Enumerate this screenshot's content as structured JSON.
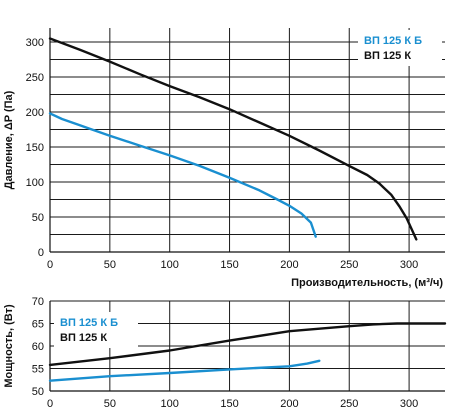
{
  "chart_data": [
    {
      "type": "line",
      "title": "",
      "xlabel": "Производительность, (м³/ч)",
      "ylabel": "Давление, ΔP (Па)",
      "xlim": [
        0,
        330
      ],
      "ylim": [
        0,
        320
      ],
      "x_ticks": [
        0,
        50,
        100,
        150,
        200,
        250,
        300
      ],
      "y_ticks": [
        0,
        25,
        50,
        75,
        100,
        125,
        150,
        175,
        200,
        225,
        250,
        275,
        300
      ],
      "y_tick_labels": [
        0,
        50,
        100,
        150,
        200,
        250,
        300
      ],
      "grid": true,
      "legend": "top-right",
      "series": [
        {
          "name": "ВП 125 К Б",
          "color": "#1a8fd0",
          "x": [
            0,
            10,
            25,
            50,
            75,
            100,
            125,
            150,
            175,
            190,
            200,
            210,
            218,
            222
          ],
          "y": [
            198,
            190,
            181,
            166,
            152,
            138,
            123,
            106,
            88,
            75,
            66,
            55,
            42,
            22
          ]
        },
        {
          "name": "ВП 125 К",
          "color": "#111111",
          "x": [
            0,
            25,
            50,
            75,
            100,
            125,
            150,
            175,
            200,
            225,
            250,
            265,
            275,
            285,
            292,
            298,
            302,
            306
          ],
          "y": [
            305,
            289,
            272,
            254,
            237,
            221,
            204,
            185,
            166,
            145,
            123,
            110,
            98,
            82,
            65,
            48,
            33,
            18
          ]
        }
      ]
    },
    {
      "type": "line",
      "title": "",
      "xlabel": "",
      "ylabel": "Мощность, (Вт)",
      "xlim": [
        0,
        330
      ],
      "ylim": [
        50,
        70
      ],
      "x_ticks": [
        0,
        50,
        100,
        150,
        200,
        250,
        300
      ],
      "y_ticks": [
        50,
        55,
        60,
        65,
        70
      ],
      "grid": true,
      "legend": "top-left",
      "series": [
        {
          "name": "ВП 125 К Б",
          "color": "#1a8fd0",
          "x": [
            0,
            50,
            100,
            150,
            200,
            215,
            225
          ],
          "y": [
            52.3,
            53.3,
            54.0,
            54.8,
            55.5,
            56.1,
            56.7
          ]
        },
        {
          "name": "ВП 125 К",
          "color": "#111111",
          "x": [
            0,
            50,
            100,
            150,
            200,
            250,
            270,
            290,
            330
          ],
          "y": [
            55.8,
            57.3,
            59.0,
            61.2,
            63.3,
            64.4,
            64.8,
            65.0,
            65.0
          ]
        }
      ]
    }
  ]
}
